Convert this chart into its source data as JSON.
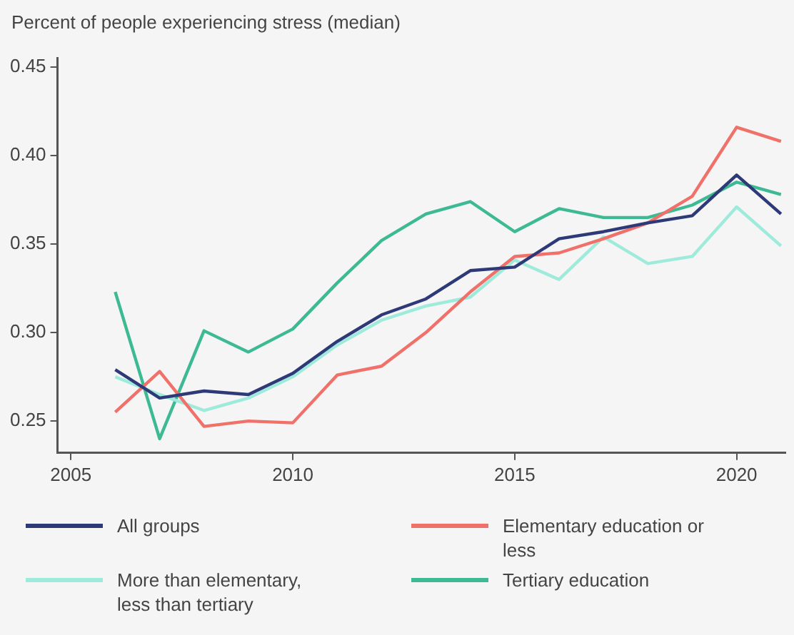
{
  "chart_data": {
    "type": "line",
    "title": "Percent of people experiencing stress (median)",
    "x": [
      2006,
      2007,
      2008,
      2009,
      2010,
      2011,
      2012,
      2013,
      2014,
      2015,
      2016,
      2017,
      2018,
      2019,
      2020,
      2021
    ],
    "series": [
      {
        "name": "All groups",
        "color": "#2e3a78",
        "values": [
          0.279,
          0.263,
          0.267,
          0.265,
          0.277,
          0.295,
          0.31,
          0.319,
          0.335,
          0.337,
          0.353,
          0.357,
          0.362,
          0.366,
          0.389,
          0.367
        ]
      },
      {
        "name": "Elementary education or less",
        "color": "#f0706a",
        "values": [
          0.255,
          0.278,
          0.247,
          0.25,
          0.249,
          0.276,
          0.281,
          0.3,
          0.323,
          0.343,
          0.345,
          0.353,
          0.362,
          0.377,
          0.416,
          0.408
        ]
      },
      {
        "name": "More than elementary, less than tertiary",
        "color": "#9eeadb",
        "values": [
          0.275,
          0.265,
          0.256,
          0.263,
          0.275,
          0.293,
          0.307,
          0.315,
          0.32,
          0.341,
          0.33,
          0.354,
          0.339,
          0.343,
          0.371,
          0.349
        ]
      },
      {
        "name": "Tertiary education",
        "color": "#3dba93",
        "values": [
          0.323,
          0.24,
          0.301,
          0.289,
          0.302,
          0.328,
          0.352,
          0.367,
          0.374,
          0.357,
          0.37,
          0.365,
          0.365,
          0.372,
          0.385,
          0.378
        ]
      }
    ],
    "xlim": [
      2004.7,
      2021.1
    ],
    "xticks": [
      2005,
      2010,
      2015,
      2020
    ],
    "ylim": [
      0.232,
      0.455
    ],
    "yticks": [
      0.25,
      {
        "value": 0.3,
        "label": "0.30"
      },
      0.35,
      {
        "value": 0.4,
        "label": "0.40"
      },
      0.45
    ],
    "grid": false,
    "legend": "bottom",
    "marker": "none",
    "line_style": "solid"
  }
}
